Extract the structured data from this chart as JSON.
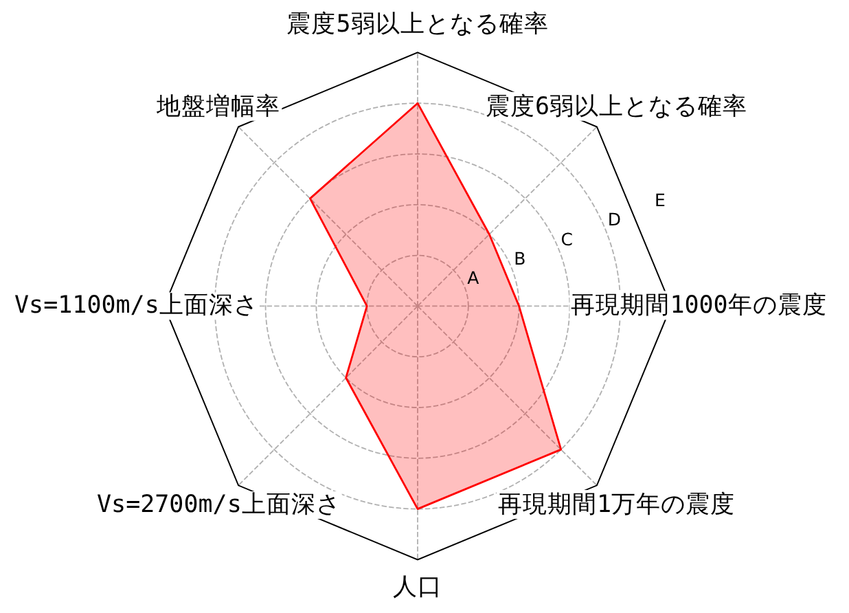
{
  "chart_data": {
    "type": "radar",
    "categories": [
      "震度5弱以上となる確率",
      "震度6弱以上となる確率",
      "再現期間1000年の震度",
      "再現期間1万年の震度",
      "人口",
      "Vs=2700m/s上面深さ",
      "Vs=1100m/s上面深さ",
      "地盤増幅率"
    ],
    "series": [
      {
        "color": "#ff0000",
        "values": [
          4,
          2,
          2,
          4,
          4,
          2,
          1,
          3
        ]
      }
    ],
    "ylim": [
      0,
      5
    ],
    "yticks": [
      {
        "value": 1,
        "label": "A"
      },
      {
        "value": 2,
        "label": "B"
      },
      {
        "value": 3,
        "label": "C"
      },
      {
        "value": 4,
        "label": "D"
      },
      {
        "value": 5,
        "label": "E"
      }
    ],
    "grid": true
  }
}
